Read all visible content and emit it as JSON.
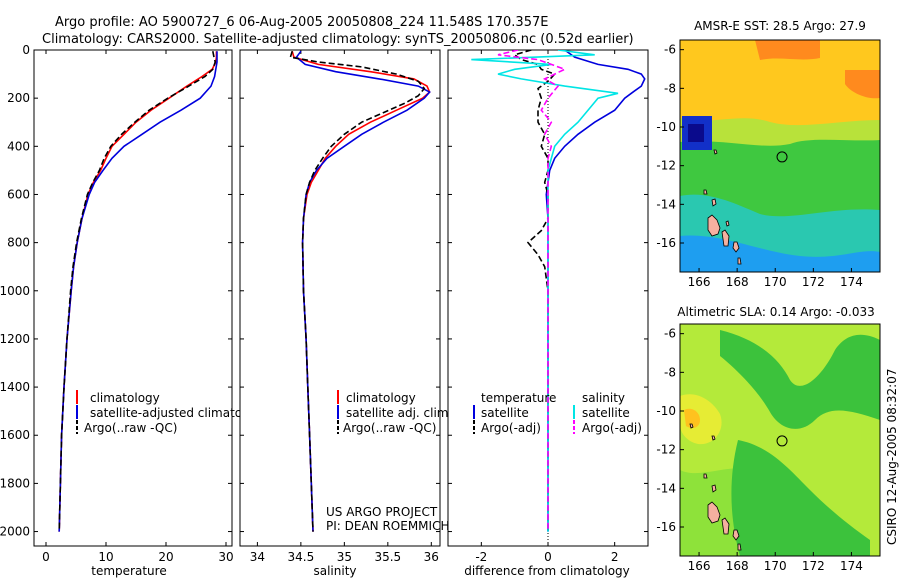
{
  "header": {
    "line1": "Argo profile: AO 5900727_6 06-Aug-2005 20050808_224 11.548S 170.357E",
    "line2": "Climatology: CARS2000. Satellite-adjusted climatology: synTS_20050806.nc (0.52d earlier)"
  },
  "colors": {
    "climatology": "#ff0000",
    "satellite": "#0000dd",
    "argo": "#000000",
    "satellite_salinity": "#00e5e5",
    "argo_salinity": "#ff00ff"
  },
  "chart_data": [
    {
      "type": "line",
      "name": "temperature-profile",
      "xlabel": "temperature",
      "xlim": [
        -2,
        31
      ],
      "ylim": [
        2060,
        0
      ],
      "xticks": [
        0,
        10,
        20,
        30
      ],
      "yticks": [
        0,
        200,
        400,
        600,
        800,
        1000,
        1200,
        1400,
        1600,
        1800,
        2000
      ],
      "legend": [
        "climatology",
        "satellite-adjusted climatology",
        "Argo(..raw -QC)"
      ],
      "series": [
        {
          "name": "climatology",
          "depth": [
            5,
            30,
            50,
            80,
            110,
            150,
            200,
            250,
            300,
            350,
            400,
            450,
            500,
            550,
            600,
            700,
            800,
            900,
            1000,
            1200,
            1400,
            1600,
            1800,
            2000
          ],
          "values": [
            28.4,
            28.4,
            28.3,
            27.7,
            26,
            23.5,
            20.5,
            17.5,
            15,
            13,
            11,
            10,
            9.1,
            7.9,
            7,
            6,
            5.2,
            4.6,
            4.2,
            3.5,
            3,
            2.6,
            2.4,
            2.2
          ]
        },
        {
          "name": "satellite",
          "depth": [
            5,
            30,
            50,
            80,
            110,
            150,
            200,
            250,
            300,
            350,
            400,
            450,
            500,
            550,
            600,
            700,
            800,
            900,
            1000,
            1200,
            1400,
            1600,
            1800,
            2000
          ],
          "values": [
            28.5,
            28.5,
            28.5,
            28.3,
            28.1,
            27.5,
            25.7,
            22.5,
            19,
            16,
            13,
            11,
            9.5,
            8.1,
            7.2,
            6,
            5.2,
            4.6,
            4.2,
            3.5,
            3,
            2.6,
            2.4,
            2.2
          ]
        },
        {
          "name": "argo",
          "depth": [
            5,
            30,
            50,
            80,
            110,
            150,
            200,
            250,
            300,
            350,
            400,
            450,
            500,
            550,
            600,
            700,
            800,
            900,
            1000,
            1200,
            1400,
            1600,
            1800,
            2000
          ],
          "values": [
            27.8,
            28,
            28.2,
            27.8,
            26.5,
            23.8,
            20.3,
            17.2,
            14.8,
            12.6,
            10.8,
            9.7,
            8.9,
            7.8,
            6.9,
            5.9,
            5.1,
            4.5,
            4.1,
            3.5,
            3,
            2.6,
            2.4,
            2.2
          ]
        }
      ]
    },
    {
      "type": "line",
      "name": "salinity-profile",
      "xlabel": "salinity",
      "xlim": [
        33.8,
        36.1
      ],
      "ylim": [
        2060,
        0
      ],
      "xticks": [
        34,
        34.5,
        35,
        35.5,
        36
      ],
      "legend": [
        "climatology",
        "satellite adj. clim.",
        "Argo(..raw -QC)"
      ],
      "series": [
        {
          "name": "climatology",
          "depth": [
            5,
            30,
            60,
            90,
            120,
            150,
            175,
            200,
            250,
            300,
            350,
            400,
            450,
            500,
            550,
            600,
            700,
            800,
            1000,
            1200,
            1400,
            1600,
            1800,
            2000
          ],
          "values": [
            34.4,
            34.42,
            34.7,
            35.3,
            35.8,
            35.95,
            35.98,
            35.9,
            35.6,
            35.3,
            35.05,
            34.9,
            34.78,
            34.7,
            34.62,
            34.57,
            34.53,
            34.52,
            34.53,
            34.56,
            34.58,
            34.6,
            34.62,
            34.64
          ]
        },
        {
          "name": "satellite",
          "depth": [
            5,
            30,
            60,
            90,
            120,
            150,
            175,
            200,
            250,
            300,
            350,
            400,
            450,
            500,
            550,
            600,
            700,
            800,
            1000,
            1200,
            1400,
            1600,
            1800,
            2000
          ],
          "values": [
            34.5,
            34.45,
            34.55,
            34.9,
            35.4,
            35.85,
            35.98,
            35.92,
            35.72,
            35.45,
            35.2,
            35,
            34.8,
            34.68,
            34.6,
            34.56,
            34.53,
            34.52,
            34.53,
            34.56,
            34.58,
            34.6,
            34.62,
            34.64
          ]
        },
        {
          "name": "argo",
          "depth": [
            5,
            30,
            50,
            70,
            100,
            130,
            160,
            190,
            220,
            260,
            300,
            350,
            400,
            450,
            500,
            550,
            600,
            700,
            800,
            1000,
            1200,
            1400,
            1600,
            1800,
            2000
          ],
          "values": [
            34.4,
            34.38,
            34.7,
            35.2,
            35.6,
            35.85,
            35.92,
            35.85,
            35.7,
            35.45,
            35.2,
            35,
            34.85,
            34.75,
            34.66,
            34.6,
            34.56,
            34.53,
            34.52,
            34.53,
            34.56,
            34.58,
            34.6,
            34.62,
            34.64
          ]
        }
      ],
      "annotation": [
        "US ARGO PROJECT",
        "PI: DEAN ROEMMICH"
      ]
    },
    {
      "type": "line",
      "name": "difference-profile",
      "xlabel": "difference from climatology",
      "xlim": [
        -3,
        3
      ],
      "ylim": [
        2060,
        0
      ],
      "xticks": [
        -2,
        0,
        2
      ],
      "legend_temperature": [
        "temperature",
        "satellite",
        "Argo(-adj)"
      ],
      "legend_salinity": [
        "salinity",
        "satellite",
        "Argo(-adj)"
      ],
      "series": [
        {
          "name": "temperature satellite",
          "depth": [
            0,
            30,
            60,
            80,
            100,
            120,
            150,
            180,
            200,
            250,
            300,
            350,
            400,
            450,
            500,
            550,
            600,
            700,
            800,
            1000,
            1200,
            1500,
            2000
          ],
          "values": [
            0.5,
            0.8,
            1.5,
            2.4,
            2.8,
            2.9,
            2.8,
            2.5,
            2.3,
            2,
            1.4,
            0.9,
            0.5,
            0.2,
            0.05,
            0,
            -0.05,
            0,
            0,
            0,
            0,
            0,
            0
          ]
        },
        {
          "name": "temperature argo",
          "depth": [
            0,
            20,
            40,
            60,
            80,
            100,
            130,
            160,
            200,
            250,
            300,
            350,
            400,
            450,
            500,
            550,
            600,
            700,
            750,
            800,
            850,
            900,
            1000,
            1200,
            2000
          ],
          "values": [
            -0.5,
            -1,
            -0.8,
            -0.3,
            -0.2,
            0.2,
            0,
            -0.3,
            -0.2,
            -0.3,
            -0.3,
            -0.1,
            -0.2,
            0,
            0,
            -0.1,
            0,
            0,
            -0.2,
            -0.6,
            -0.3,
            -0.1,
            0,
            0,
            0
          ]
        },
        {
          "name": "salinity satellite",
          "depth": [
            0,
            20,
            40,
            60,
            80,
            100,
            120,
            150,
            180,
            200,
            250,
            300,
            350,
            400,
            500,
            600,
            800,
            1000,
            2000
          ],
          "values": [
            0.3,
            1.4,
            -2.3,
            0.1,
            -1,
            -1.5,
            -0.8,
            0.5,
            2.1,
            1.5,
            1.2,
            0.9,
            0.5,
            0.2,
            0,
            0,
            0,
            0,
            0
          ]
        },
        {
          "name": "salinity argo",
          "depth": [
            0,
            20,
            40,
            60,
            80,
            100,
            120,
            150,
            200,
            250,
            300,
            350,
            400,
            450,
            500,
            600,
            800,
            2000
          ],
          "values": [
            -0.9,
            -1.5,
            -0.3,
            0.1,
            0.5,
            0.2,
            -0.1,
            0.3,
            0,
            -0.2,
            0.1,
            -0.1,
            0.1,
            0,
            0,
            0,
            0,
            0
          ]
        }
      ]
    },
    {
      "type": "heatmap",
      "name": "sst-map",
      "title": "AMSR-E SST: 28.5 Argo: 27.9",
      "xlim": [
        165,
        175.5
      ],
      "ylim": [
        -17.5,
        -5.5
      ],
      "xticks": [
        166,
        168,
        170,
        172,
        174
      ],
      "yticks": [
        -6,
        -8,
        -10,
        -12,
        -14,
        -16
      ],
      "float_position": {
        "lon": 170.357,
        "lat": -11.548
      }
    },
    {
      "type": "heatmap",
      "name": "sla-map",
      "title": "Altimetric SLA: 0.14 Argo: -0.033",
      "xlim": [
        165,
        175.5
      ],
      "ylim": [
        -17.5,
        -5.5
      ],
      "xticks": [
        166,
        168,
        170,
        172,
        174
      ],
      "yticks": [
        -6,
        -8,
        -10,
        -12,
        -14,
        -16
      ],
      "float_position": {
        "lon": 170.357,
        "lat": -11.548
      }
    }
  ],
  "footer": {
    "side_label": "CSIRO 12-Aug-2005 08:32:07"
  }
}
